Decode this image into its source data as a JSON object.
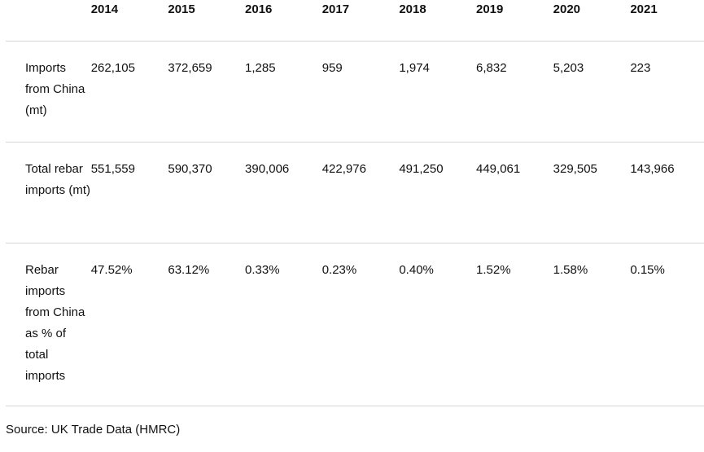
{
  "table": {
    "headers": [
      "",
      "2014",
      "2015",
      "2016",
      "2017",
      "2018",
      "2019",
      "2020",
      "2021"
    ],
    "rows": [
      {
        "label": "Imports from China (mt)",
        "values": [
          "262,105",
          "372,659",
          "1,285",
          "959",
          "1,974",
          "6,832",
          "5,203",
          "223"
        ]
      },
      {
        "label": "Total rebar imports (mt)",
        "values": [
          "551,559",
          "590,370",
          "390,006",
          "422,976",
          "491,250",
          "449,061",
          "329,505",
          "143,966"
        ]
      },
      {
        "label": "Rebar imports from China as % of total imports",
        "values": [
          "47.52%",
          "63.12%",
          "0.33%",
          "0.23%",
          "0.40%",
          "1.52%",
          "1.58%",
          "0.15%"
        ]
      }
    ]
  },
  "source": "Source: UK Trade Data (HMRC)"
}
